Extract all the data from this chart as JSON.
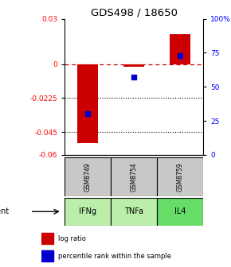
{
  "title": "GDS498 / 18650",
  "samples": [
    "GSM8749",
    "GSM8754",
    "GSM8759"
  ],
  "agents": [
    "IFNg",
    "TNFa",
    "IL4"
  ],
  "log_ratios": [
    -0.052,
    -0.002,
    0.02
  ],
  "percentile_ranks": [
    30,
    57,
    73
  ],
  "ylim_left": [
    -0.06,
    0.03
  ],
  "ylim_right": [
    0,
    100
  ],
  "yticks_left": [
    0.03,
    0,
    -0.0225,
    -0.045,
    -0.06
  ],
  "ytick_labels_left": [
    "0.03",
    "0",
    "-0.0225",
    "-0.045",
    "-0.06"
  ],
  "yticks_right": [
    100,
    75,
    50,
    25,
    0
  ],
  "ytick_labels_right": [
    "100%",
    "75",
    "50",
    "25",
    "0"
  ],
  "dotted_hlines": [
    -0.0225,
    -0.045
  ],
  "bar_color": "#cc0000",
  "dot_color": "#0000cc",
  "sample_bg": "#c8c8c8",
  "agent_bg_colors": [
    "#bbeeaa",
    "#bbeeaa",
    "#66dd66"
  ],
  "dashed_line_color": "#cc0000",
  "legend_bar_label": "log ratio",
  "legend_dot_label": "percentile rank within the sample"
}
